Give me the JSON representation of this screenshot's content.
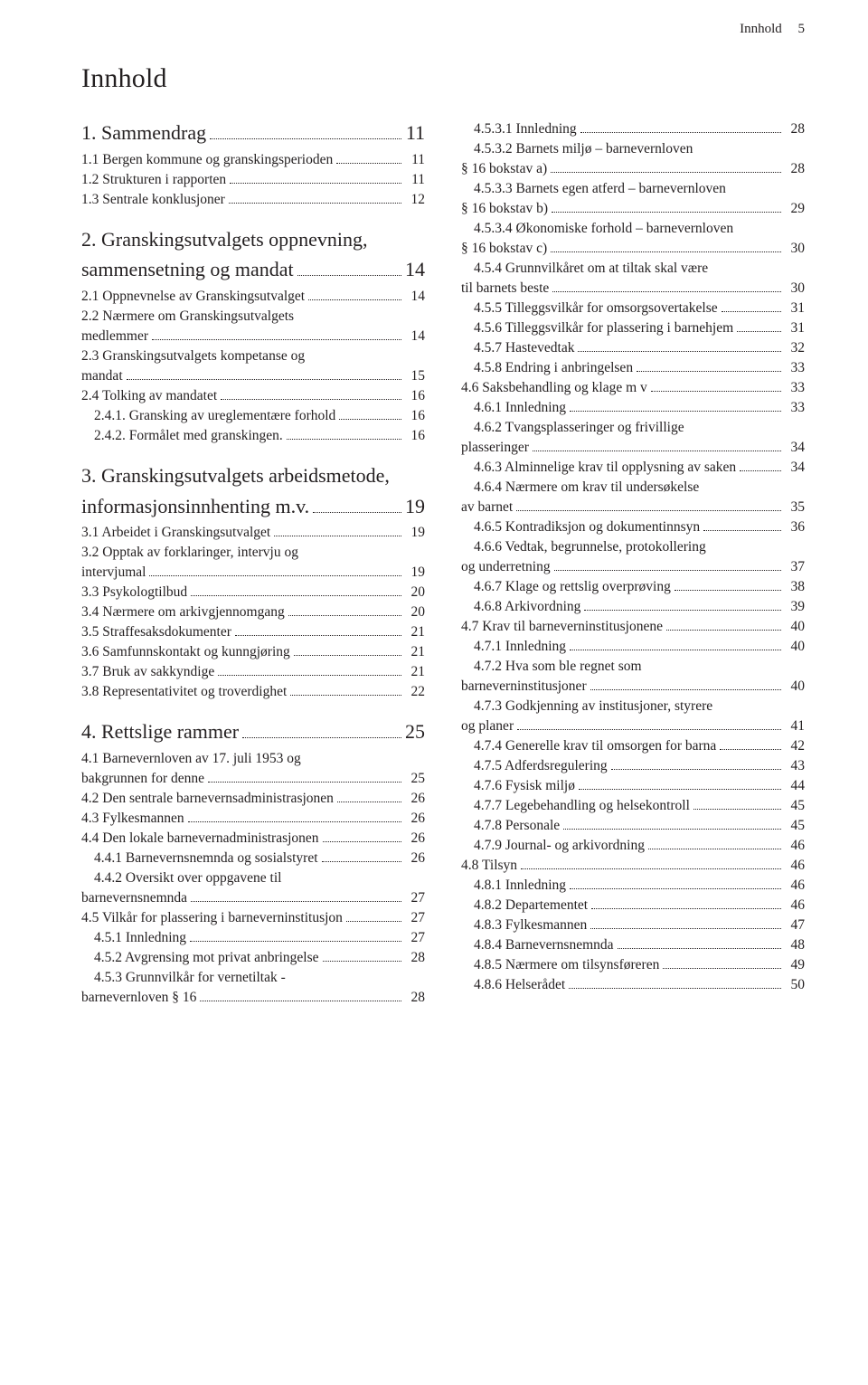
{
  "runningHead": {
    "label": "Innhold",
    "page": "5"
  },
  "pageTitle": "Innhold",
  "leftColumn": [
    {
      "type": "chapter",
      "label": "1. Sammendrag",
      "page": "11"
    },
    {
      "label": "1.1 Bergen kommune og granskingsperioden",
      "page": "11"
    },
    {
      "label": "1.2 Strukturen i rapporten",
      "page": "11"
    },
    {
      "label": "1.3 Sentrale konklusjoner",
      "page": "12"
    },
    {
      "type": "chapter",
      "noPage": true,
      "label": "2. Granskingsutvalgets oppnevning,"
    },
    {
      "type": "chapter",
      "continued": true,
      "label": "sammensetning og mandat",
      "page": "14"
    },
    {
      "label": "2.1 Oppnevnelse av Granskingsutvalget",
      "page": "14"
    },
    {
      "noPage": true,
      "label": "2.2 Nærmere om Granskingsutvalgets"
    },
    {
      "continued": true,
      "label": "medlemmer",
      "page": "14"
    },
    {
      "noPage": true,
      "label": "2.3 Granskingsutvalgets kompetanse og"
    },
    {
      "continued": true,
      "label": "mandat",
      "page": "15"
    },
    {
      "label": "2.4 Tolking av mandatet",
      "page": "16"
    },
    {
      "indent": 1,
      "label": "2.4.1. Gransking av ureglementære forhold",
      "page": "16"
    },
    {
      "indent": 1,
      "label": "2.4.2. Formålet med granskingen.",
      "page": "16"
    },
    {
      "type": "chapter",
      "noPage": true,
      "label": "3. Granskingsutvalgets arbeidsmetode,"
    },
    {
      "type": "chapter",
      "continued": true,
      "label": "informasjonsinnhenting m.v.",
      "page": "19"
    },
    {
      "label": "3.1 Arbeidet i Granskingsutvalget",
      "page": "19"
    },
    {
      "noPage": true,
      "label": "3.2 Opptak av forklaringer, intervju og"
    },
    {
      "continued": true,
      "label": "intervjumal",
      "page": "19"
    },
    {
      "label": "3.3 Psykologtilbud",
      "page": "20"
    },
    {
      "label": "3.4 Nærmere om arkivgjennomgang",
      "page": "20"
    },
    {
      "label": "3.5 Straffesaksdokumenter",
      "page": "21"
    },
    {
      "label": "3.6 Samfunnskontakt og kunngjøring",
      "page": "21"
    },
    {
      "label": "3.7 Bruk av sakkyndige",
      "page": "21"
    },
    {
      "label": "3.8 Representativitet og troverdighet",
      "page": "22"
    },
    {
      "type": "chapter",
      "label": "4. Rettslige rammer",
      "page": "25"
    },
    {
      "noPage": true,
      "label": "4.1 Barnevernloven av 17. juli 1953 og"
    },
    {
      "continued": true,
      "label": "bakgrunnen for denne",
      "page": "25"
    },
    {
      "label": "4.2 Den sentrale barnevernsadministrasjonen",
      "page": "26"
    },
    {
      "label": "4.3 Fylkesmannen",
      "page": "26"
    },
    {
      "label": "4.4 Den lokale barnevernadministrasjonen",
      "page": "26"
    },
    {
      "indent": 1,
      "label": "4.4.1 Barnevernsnemnda og sosialstyret",
      "page": "26"
    },
    {
      "indent": 1,
      "noPage": true,
      "label": "4.4.2 Oversikt over oppgavene til"
    },
    {
      "indent": 1,
      "continued": true,
      "label": "barnevernsnemnda",
      "page": "27"
    },
    {
      "label": "4.5 Vilkår for plassering i barneverninstitusjon",
      "page": "27"
    },
    {
      "indent": 1,
      "label": "4.5.1 Innledning",
      "page": "27"
    },
    {
      "indent": 1,
      "label": "4.5.2 Avgrensing mot privat anbringelse",
      "page": "28"
    },
    {
      "indent": 1,
      "noPage": true,
      "label": "4.5.3 Grunnvilkår for vernetiltak -"
    },
    {
      "indent": 1,
      "continued": true,
      "label": "barnevernloven § 16",
      "page": "28"
    }
  ],
  "rightColumn": [
    {
      "indent": 1,
      "label": "4.5.3.1 Innledning",
      "page": "28"
    },
    {
      "indent": 1,
      "noPage": true,
      "label": "4.5.3.2 Barnets miljø – barnevernloven"
    },
    {
      "indent": 1,
      "continued": true,
      "label": "§ 16 bokstav a)",
      "page": "28"
    },
    {
      "indent": 1,
      "noPage": true,
      "label": "4.5.3.3 Barnets egen atferd – barnevernloven"
    },
    {
      "indent": 1,
      "continued": true,
      "label": "§ 16 bokstav b)",
      "page": "29"
    },
    {
      "indent": 1,
      "noPage": true,
      "label": "4.5.3.4 Økonomiske forhold – barnevernloven"
    },
    {
      "indent": 1,
      "continued": true,
      "label": "§ 16 bokstav c)",
      "page": "30"
    },
    {
      "indent": 1,
      "noPage": true,
      "label": "4.5.4 Grunnvilkåret om at tiltak skal være"
    },
    {
      "indent": 1,
      "continued": true,
      "label": "til barnets beste",
      "page": "30"
    },
    {
      "indent": 1,
      "label": "4.5.5 Tilleggsvilkår for omsorgsovertakelse",
      "page": "31"
    },
    {
      "indent": 1,
      "label": "4.5.6 Tilleggsvilkår for plassering i barnehjem",
      "page": "31"
    },
    {
      "indent": 1,
      "label": "4.5.7 Hastevedtak",
      "page": "32"
    },
    {
      "indent": 1,
      "label": "4.5.8 Endring i anbringelsen",
      "page": "33"
    },
    {
      "label": "4.6 Saksbehandling og klage m v",
      "page": "33"
    },
    {
      "indent": 1,
      "label": "4.6.1 Innledning",
      "page": "33"
    },
    {
      "indent": 1,
      "noPage": true,
      "label": "4.6.2 Tvangsplasseringer og frivillige"
    },
    {
      "indent": 1,
      "continued": true,
      "label": "plasseringer",
      "page": "34"
    },
    {
      "indent": 1,
      "label": "4.6.3 Alminnelige krav til opplysning av saken",
      "page": "34"
    },
    {
      "indent": 1,
      "noPage": true,
      "label": "4.6.4 Nærmere om krav til undersøkelse"
    },
    {
      "indent": 1,
      "continued": true,
      "label": "av barnet",
      "page": "35"
    },
    {
      "indent": 1,
      "label": "4.6.5 Kontradiksjon og dokumentinnsyn",
      "page": "36"
    },
    {
      "indent": 1,
      "noPage": true,
      "label": "4.6.6 Vedtak, begrunnelse, protokollering"
    },
    {
      "indent": 1,
      "continued": true,
      "label": "og underretning",
      "page": "37"
    },
    {
      "indent": 1,
      "label": "4.6.7 Klage og rettslig overprøving",
      "page": "38"
    },
    {
      "indent": 1,
      "label": "4.6.8 Arkivordning",
      "page": "39"
    },
    {
      "label": "4.7 Krav til barneverninstitusjonene",
      "page": "40"
    },
    {
      "indent": 1,
      "label": "4.7.1 Innledning",
      "page": "40"
    },
    {
      "indent": 1,
      "noPage": true,
      "label": "4.7.2 Hva som ble regnet som"
    },
    {
      "indent": 1,
      "continued": true,
      "label": "barneverninstitusjoner",
      "page": "40"
    },
    {
      "indent": 1,
      "noPage": true,
      "label": "4.7.3 Godkjenning av institusjoner, styrere"
    },
    {
      "indent": 1,
      "continued": true,
      "label": "og planer",
      "page": "41"
    },
    {
      "indent": 1,
      "label": "4.7.4 Generelle krav til omsorgen for barna",
      "page": "42"
    },
    {
      "indent": 1,
      "label": "4.7.5 Adferdsregulering",
      "page": "43"
    },
    {
      "indent": 1,
      "label": "4.7.6 Fysisk miljø",
      "page": "44"
    },
    {
      "indent": 1,
      "label": "4.7.7 Legebehandling og helsekontroll",
      "page": "45"
    },
    {
      "indent": 1,
      "label": "4.7.8 Personale",
      "page": "45"
    },
    {
      "indent": 1,
      "label": "4.7.9 Journal- og arkivordning",
      "page": "46"
    },
    {
      "label": "4.8 Tilsyn",
      "page": "46"
    },
    {
      "indent": 1,
      "label": "4.8.1 Innledning",
      "page": "46"
    },
    {
      "indent": 1,
      "label": "4.8.2 Departementet",
      "page": "46"
    },
    {
      "indent": 1,
      "label": "4.8.3 Fylkesmannen",
      "page": "47"
    },
    {
      "indent": 1,
      "label": "4.8.4 Barnevernsnemnda",
      "page": "48"
    },
    {
      "indent": 1,
      "label": "4.8.5 Nærmere om tilsynsføreren",
      "page": "49"
    },
    {
      "indent": 1,
      "label": "4.8.6 Helserådet",
      "page": "50"
    }
  ]
}
